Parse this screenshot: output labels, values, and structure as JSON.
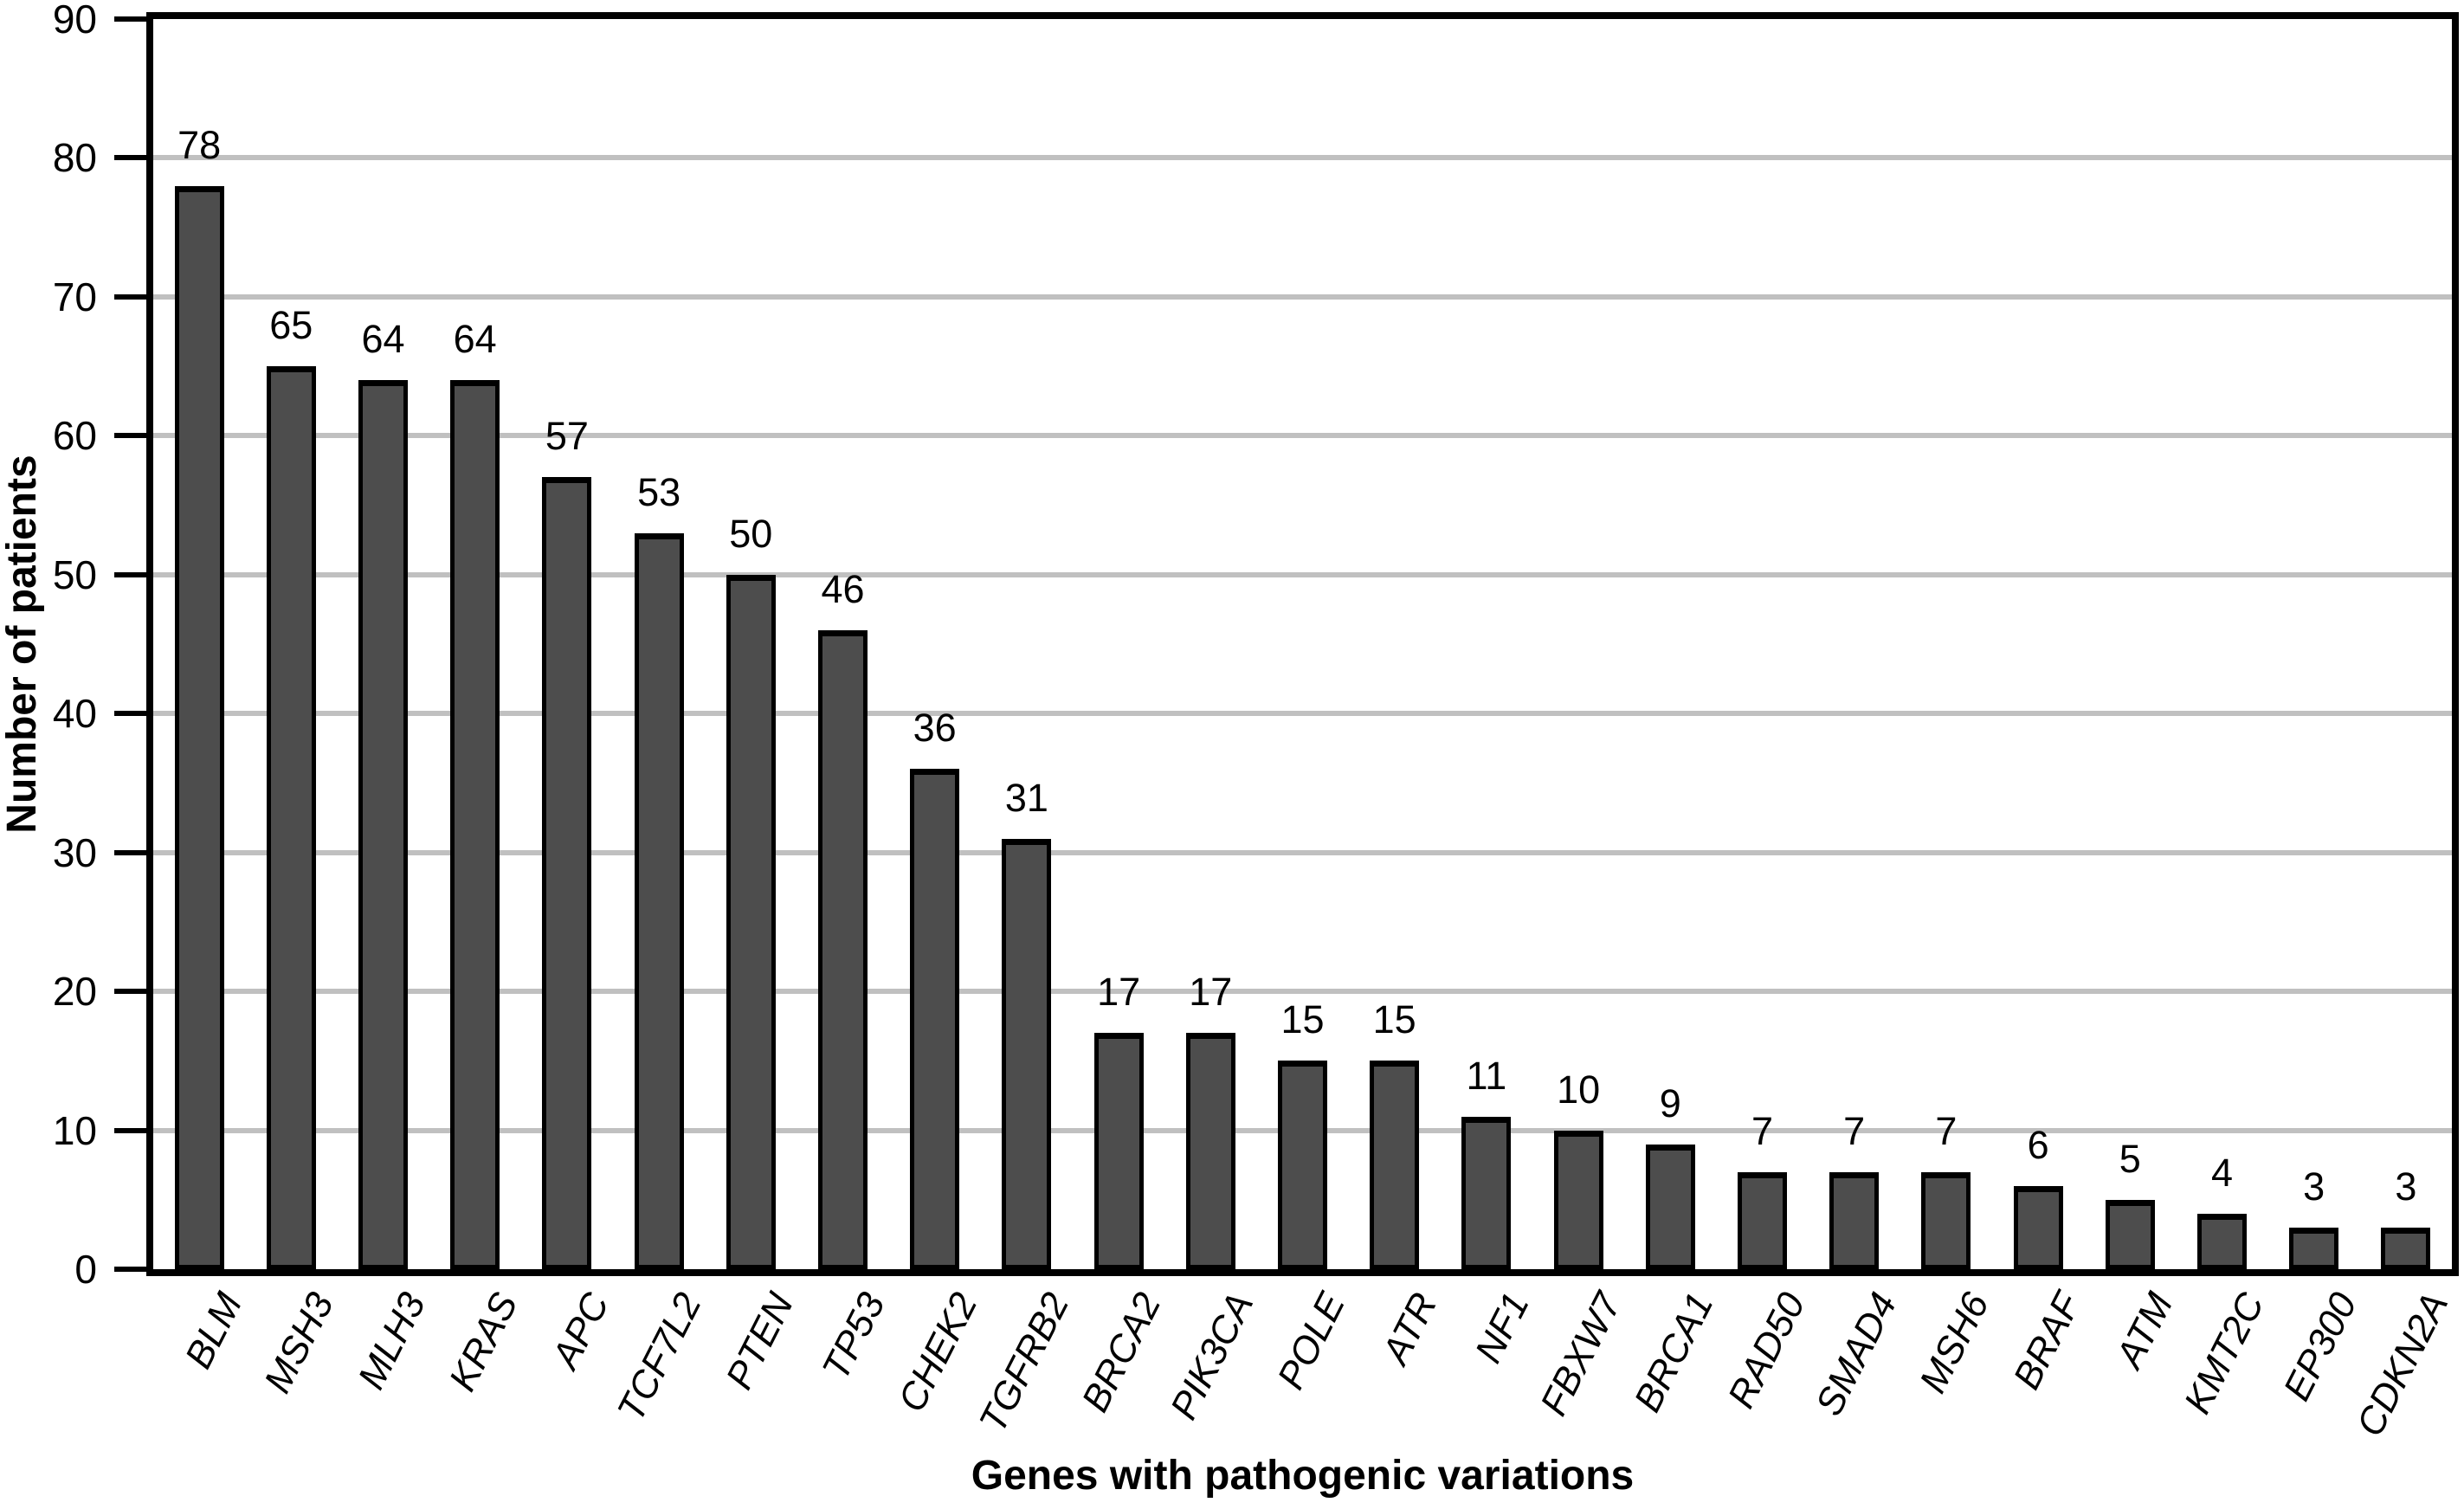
{
  "figure": {
    "background": "#ffffff",
    "text_color": "#000000",
    "axis_color": "#000000",
    "gridline_color": "#c0c0c0",
    "bar_fill_color": "#4d4d4d",
    "bar_border_color": "#000000"
  },
  "chart_data": {
    "type": "bar",
    "title": "",
    "xlabel": "Genes with pathogenic variations",
    "ylabel": "Number of patients",
    "categories": [
      "BLM",
      "MSH3",
      "MLH3",
      "KRAS",
      "APC",
      "TCF7L2",
      "PTEN",
      "TP53",
      "CHEK2",
      "TGFRB2",
      "BRCA2",
      "PIK3CA",
      "POLE",
      "ATR",
      "NF1",
      "FBXW7",
      "BRCA1",
      "RAD50",
      "SMAD4",
      "MSH6",
      "BRAF",
      "ATM",
      "KMT2C",
      "EP300",
      "CDKN2A"
    ],
    "values": [
      78,
      65,
      64,
      64,
      57,
      53,
      50,
      46,
      36,
      31,
      17,
      17,
      15,
      15,
      11,
      10,
      9,
      7,
      7,
      7,
      6,
      5,
      4,
      3,
      3
    ],
    "bar_value_labels": [
      "78",
      "65",
      "64",
      "64",
      "57",
      "53",
      "50",
      "46",
      "36",
      "31",
      "17",
      "17",
      "15",
      "15",
      "11",
      "10",
      "9",
      "7",
      "7",
      "7",
      "6",
      "5",
      "4",
      "3",
      "3"
    ],
    "ylim": [
      0,
      90
    ],
    "yticks": [
      0,
      10,
      20,
      30,
      40,
      50,
      60,
      70,
      80,
      90
    ],
    "grid": "horizontal-gridlines-at-each-ytick",
    "legend": "none",
    "x_tick_label_style": "italic, rotated"
  }
}
